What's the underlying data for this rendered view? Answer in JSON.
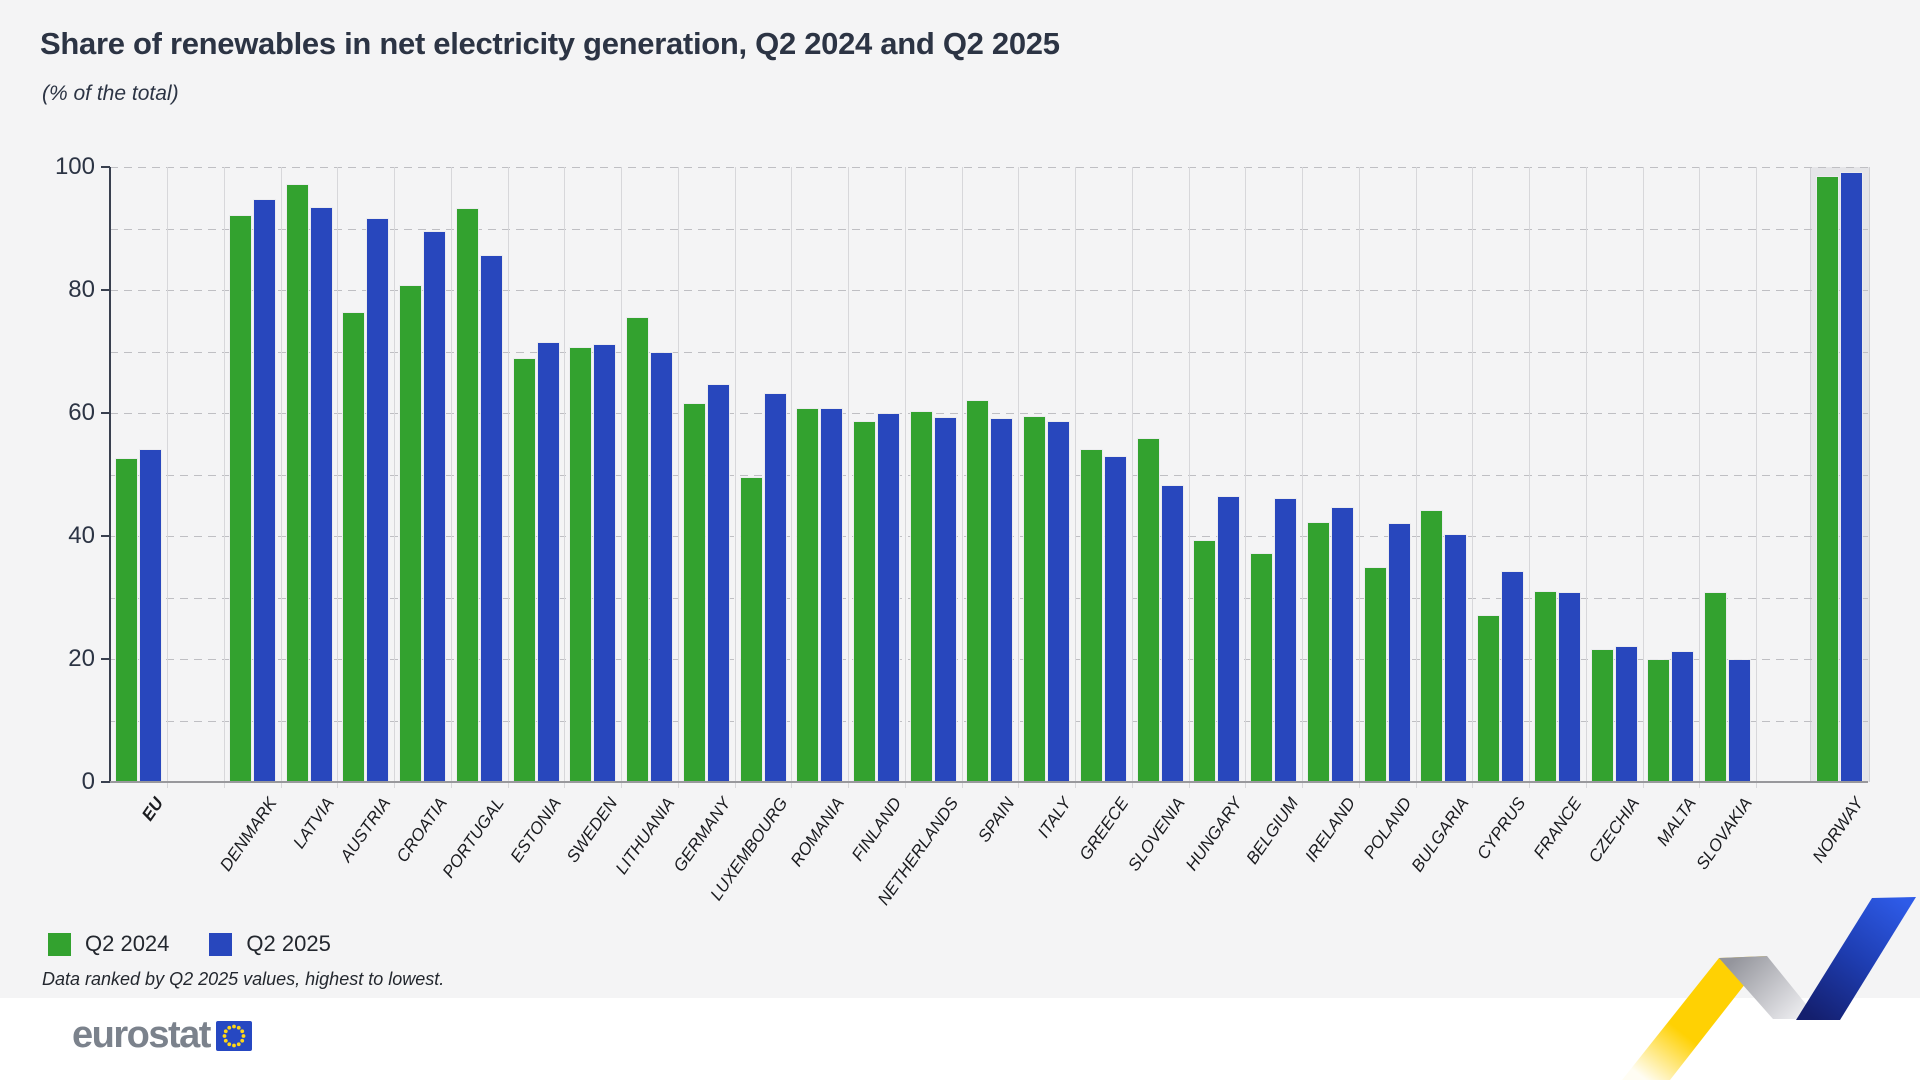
{
  "title": "Share of renewables in net electricity generation, Q2 2024 and Q2 2025",
  "subtitle": "(% of the total)",
  "legend": {
    "series1": "Q2 2024",
    "series2": "Q2 2025"
  },
  "note": "Data ranked by Q2 2025 values, highest to lowest.",
  "logo": {
    "text": "eurostat"
  },
  "colors": {
    "q2_2024": "#33a22f",
    "q2_2025": "#2847bd",
    "background": "#f4f4f5",
    "norway_band": "#e5e5e8",
    "text_dark": "#2c3444",
    "ribbon_yellow": "#ffd103",
    "ribbon_blue_dark": "#141f6e",
    "ribbon_blue_bright": "#2e5be8",
    "eu_flag_blue": "#2648c2",
    "eu_flag_stars": "#ffd617"
  },
  "chart_data": {
    "type": "bar",
    "title": "Share of renewables in net electricity generation, Q2 2024 and Q2 2025",
    "subtitle": "(% of the total)",
    "unit": "%",
    "categories": [
      "EU",
      "DENMARK",
      "LATVIA",
      "AUSTRIA",
      "CROATIA",
      "PORTUGAL",
      "ESTONIA",
      "SWEDEN",
      "LITHUANIA",
      "GERMANY",
      "LUXEMBOURG",
      "ROMANIA",
      "FINLAND",
      "NETHERLANDS",
      "SPAIN",
      "ITALY",
      "GREECE",
      "SLOVENIA",
      "HUNGARY",
      "BELGIUM",
      "IRELAND",
      "POLAND",
      "BULGARIA",
      "CYPRUS",
      "FRANCE",
      "CZECHIA",
      "MALTA",
      "SLOVAKIA",
      "NORWAY"
    ],
    "series": [
      {
        "name": "Q2 2024",
        "values": [
          52.5,
          92.1,
          97.0,
          76.3,
          80.6,
          93.1,
          68.8,
          70.5,
          75.5,
          61.4,
          49.4,
          60.7,
          58.6,
          60.1,
          62.0,
          59.3,
          54.0,
          55.8,
          39.2,
          37.1,
          42.1,
          34.8,
          44.0,
          27.0,
          30.9,
          21.4,
          19.8,
          30.7,
          98.4
        ]
      },
      {
        "name": "Q2 2025",
        "values": [
          54.0,
          94.7,
          93.3,
          91.6,
          89.4,
          85.5,
          71.4,
          71.0,
          69.7,
          64.6,
          63.1,
          60.7,
          59.9,
          59.2,
          59.0,
          58.5,
          52.8,
          48.2,
          46.3,
          46.1,
          44.6,
          42.0,
          40.2,
          34.1,
          30.8,
          22.0,
          21.1,
          19.8,
          99.0
        ]
      }
    ],
    "xlabel": "",
    "ylabel": "",
    "ylim": [
      0,
      100
    ],
    "yticks": [
      0,
      20,
      40,
      60,
      80,
      100
    ],
    "grid_step": 10,
    "grid": "dashed horizontal every 10, light vertical separators between categories",
    "legend_position": "bottom-left",
    "gap_after": [
      "EU",
      "SLOVAKIA"
    ],
    "highlight_category": "NORWAY",
    "bold_category": "EU"
  }
}
